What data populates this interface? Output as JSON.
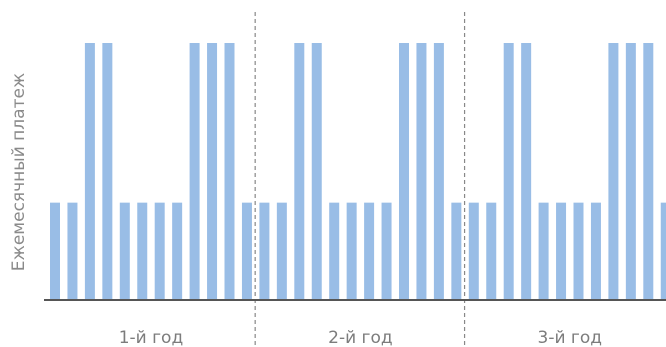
{
  "chart_data": {
    "type": "bar",
    "ylabel": "Ежемесячный платеж",
    "xlabel": "",
    "title": "",
    "grid": false,
    "legend": "none",
    "years": [
      "1-й год",
      "2-й год",
      "3-й год"
    ],
    "months_per_year": 12,
    "values": [
      1,
      1,
      2.64,
      2.64,
      1,
      1,
      1,
      1,
      2.64,
      2.64,
      2.64,
      1,
      1,
      1,
      2.64,
      2.64,
      1,
      1,
      1,
      1,
      2.64,
      2.64,
      2.64,
      1,
      1,
      1,
      2.64,
      2.64,
      1,
      1,
      1,
      1,
      2.64,
      2.64,
      2.64,
      1
    ],
    "ylim": [
      0,
      2.64
    ],
    "bar_color": "#99bde6",
    "axis_color": "#555555",
    "divider_color": "#888888"
  }
}
